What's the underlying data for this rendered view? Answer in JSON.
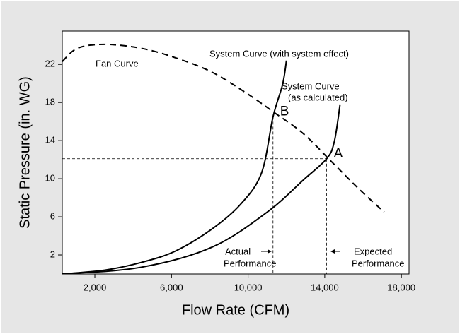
{
  "chart_data": {
    "type": "line",
    "x_label": "Flow Rate (CFM)",
    "y_label": "Static Pressure (in. WG)",
    "xlim": [
      300,
      18400
    ],
    "ylim": [
      0,
      25.5
    ],
    "xticks": [
      {
        "value": 2000,
        "label": "2,000"
      },
      {
        "value": 6000,
        "label": "6,000"
      },
      {
        "value": 10000,
        "label": "10,000"
      },
      {
        "value": 14000,
        "label": "14,000"
      },
      {
        "value": 18000,
        "label": "18,000"
      }
    ],
    "yticks": [
      2,
      6,
      10,
      14,
      18,
      22
    ],
    "series": [
      {
        "color": "#000000",
        "style": "dashed",
        "x": [
          300,
          1100,
          2500,
          4400,
          6200,
          8100,
          9900,
          11400,
          12900,
          14400,
          15800,
          17100
        ],
        "values": [
          22.3,
          23.7,
          24.1,
          23.7,
          22.7,
          21.2,
          19.0,
          16.9,
          14.7,
          11.7,
          8.9,
          6.5
        ]
      },
      {
        "color": "#000000",
        "style": "solid",
        "x": [
          300,
          2500,
          4400,
          6200,
          8100,
          9600,
          10700,
          11300,
          11800,
          12000
        ],
        "values": [
          0,
          0.4,
          1.2,
          2.4,
          4.7,
          7.3,
          10.6,
          16.5,
          19.9,
          22.4
        ]
      },
      {
        "color": "#000000",
        "style": "solid",
        "x": [
          300,
          4400,
          8100,
          11000,
          12900,
          14100,
          14500,
          14800
        ],
        "values": [
          0,
          0.7,
          2.8,
          6.5,
          9.9,
          12.1,
          13.9,
          17.8
        ]
      }
    ],
    "operating_points": [
      {
        "label": "B",
        "x": 11300,
        "y": 16.5
      },
      {
        "label": "A",
        "x": 14100,
        "y": 12.1
      }
    ],
    "annotations": [
      {
        "lines": [
          "Fan Curve"
        ]
      },
      {
        "lines": [
          "System Curve (with system effect)"
        ]
      },
      {
        "lines": [
          "System Curve",
          "(as calculated)"
        ]
      },
      {
        "lines": [
          "Actual",
          "Performance"
        ]
      },
      {
        "lines": [
          "Expected",
          "Performance"
        ]
      }
    ]
  }
}
